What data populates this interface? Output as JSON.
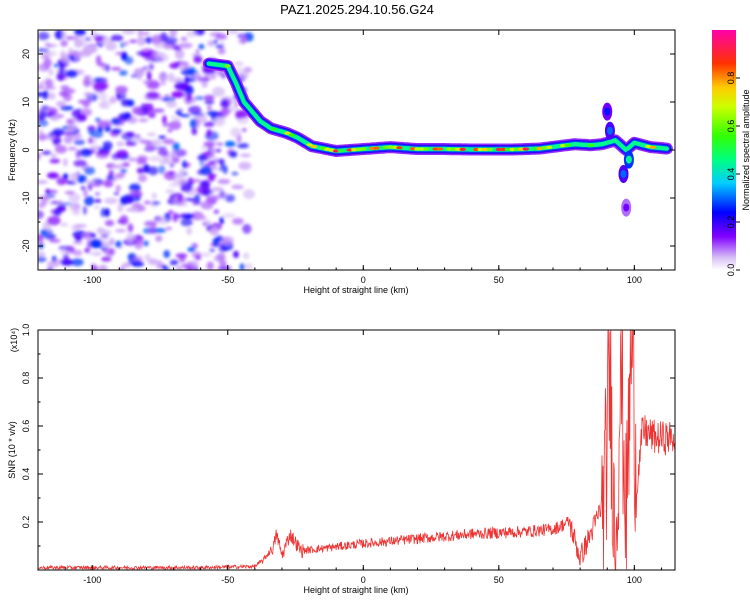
{
  "title": "PAZ1.2025.294.10.56.G24",
  "chart_data": [
    {
      "type": "heatmap",
      "xlabel": "Height of straight line (km)",
      "ylabel": "Frequency (Hz)",
      "xlim": [
        -120,
        115
      ],
      "ylim": [
        -25,
        25
      ],
      "xticks": [
        -100,
        -50,
        0,
        50,
        100
      ],
      "yticks": [
        -20,
        -10,
        0,
        10,
        20
      ],
      "colorbar": {
        "label": "Normalized spectral amplitude",
        "range": [
          0,
          1
        ],
        "ticks": [
          0.0,
          0.2,
          0.4,
          0.6,
          0.8
        ],
        "colormap": [
          "#ffffff",
          "#8000ff",
          "#0000ff",
          "#00ffff",
          "#00ff00",
          "#ffff00",
          "#ff0000",
          "#ff00aa"
        ]
      },
      "noise_region": {
        "x_range": [
          -120,
          -42
        ],
        "y_range": [
          -25,
          25
        ],
        "amplitude": [
          0.05,
          0.3
        ]
      },
      "ridge": [
        {
          "x": -57,
          "y": 18,
          "a": 0.45
        },
        {
          "x": -50,
          "y": 17.5,
          "a": 0.6
        },
        {
          "x": -47,
          "y": 14,
          "a": 0.55
        },
        {
          "x": -44,
          "y": 10,
          "a": 0.5
        },
        {
          "x": -41,
          "y": 8,
          "a": 0.45
        },
        {
          "x": -38,
          "y": 6,
          "a": 0.45
        },
        {
          "x": -34,
          "y": 4.5,
          "a": 0.55
        },
        {
          "x": -28,
          "y": 3.5,
          "a": 0.7
        },
        {
          "x": -24,
          "y": 2.5,
          "a": 0.65
        },
        {
          "x": -19,
          "y": 0.8,
          "a": 0.75
        },
        {
          "x": -10,
          "y": -0.2,
          "a": 0.95
        },
        {
          "x": 0,
          "y": 0.2,
          "a": 0.85
        },
        {
          "x": 10,
          "y": 0.6,
          "a": 0.85
        },
        {
          "x": 20,
          "y": 0.2,
          "a": 0.85
        },
        {
          "x": 30,
          "y": 0.2,
          "a": 0.88
        },
        {
          "x": 40,
          "y": 0.1,
          "a": 0.88
        },
        {
          "x": 55,
          "y": 0.1,
          "a": 0.95
        },
        {
          "x": 65,
          "y": 0.3,
          "a": 0.85
        },
        {
          "x": 72,
          "y": 0.8,
          "a": 0.7
        },
        {
          "x": 78,
          "y": 1.2,
          "a": 0.6
        },
        {
          "x": 84,
          "y": 1.0,
          "a": 0.55
        },
        {
          "x": 88,
          "y": 1.2,
          "a": 0.55
        },
        {
          "x": 93,
          "y": 2.0,
          "a": 0.45
        },
        {
          "x": 97,
          "y": 0.0,
          "a": 0.45
        },
        {
          "x": 100,
          "y": 1.5,
          "a": 0.5
        },
        {
          "x": 106,
          "y": 0.6,
          "a": 0.8
        },
        {
          "x": 112,
          "y": 0.3,
          "a": 0.6
        }
      ],
      "blobs": [
        {
          "x": 90,
          "y": 8,
          "a": 0.25
        },
        {
          "x": 91,
          "y": 4,
          "a": 0.3
        },
        {
          "x": 96,
          "y": -5,
          "a": 0.3
        },
        {
          "x": 98,
          "y": -2,
          "a": 0.45
        },
        {
          "x": 97,
          "y": -12,
          "a": 0.15
        }
      ]
    },
    {
      "type": "line",
      "xlabel": "Height of straight line (km)",
      "ylabel": "SNR (10 * v/v)",
      "y_multiplier": "(x10⁴)",
      "xlim": [
        -120,
        115
      ],
      "ylim": [
        0,
        1.0
      ],
      "xticks": [
        -100,
        -50,
        0,
        50,
        100
      ],
      "yticks": [
        0.2,
        0.4,
        0.6,
        0.8,
        1.0
      ],
      "color": "#ee3333",
      "series": [
        {
          "values_envelope": [
            [
              -120,
              0.01
            ],
            [
              -60,
              0.01
            ],
            [
              -40,
              0.015
            ],
            [
              -37,
              0.04
            ],
            [
              -33,
              0.1
            ],
            [
              -32,
              0.15
            ],
            [
              -30,
              0.06
            ],
            [
              -27,
              0.15
            ],
            [
              -23,
              0.08
            ],
            [
              -15,
              0.09
            ],
            [
              0,
              0.11
            ],
            [
              20,
              0.13
            ],
            [
              40,
              0.15
            ],
            [
              60,
              0.16
            ],
            [
              70,
              0.17
            ],
            [
              76,
              0.2
            ],
            [
              80,
              0.05
            ],
            [
              85,
              0.18
            ],
            [
              89,
              0.3
            ],
            [
              91,
              0.85
            ],
            [
              93,
              0.05
            ],
            [
              95,
              0.9
            ],
            [
              97,
              0.2
            ],
            [
              99,
              1.0
            ],
            [
              101,
              0.35
            ],
            [
              103,
              0.58
            ],
            [
              108,
              0.55
            ],
            [
              115,
              0.55
            ]
          ]
        }
      ]
    }
  ]
}
